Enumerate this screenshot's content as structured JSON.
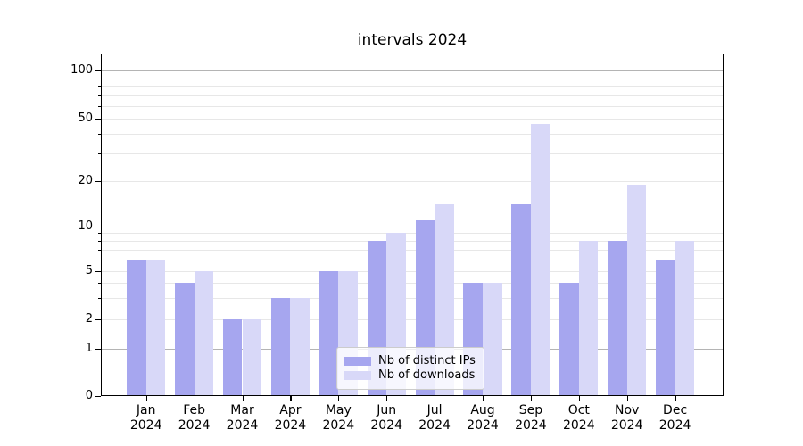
{
  "chart_data": {
    "type": "bar",
    "title": "intervals 2024",
    "categories": [
      "Jan",
      "Feb",
      "Mar",
      "Apr",
      "May",
      "Jun",
      "Jul",
      "Aug",
      "Sep",
      "Oct",
      "Nov",
      "Dec"
    ],
    "x_tick_second_line": "2024",
    "series": [
      {
        "name": "Nb of distinct IPs",
        "color": "#a6a6ef",
        "values": [
          6,
          4,
          2,
          3,
          5,
          8,
          11,
          4,
          14,
          4,
          8,
          6
        ]
      },
      {
        "name": "Nb of downloads",
        "color": "#d8d8f8",
        "values": [
          6,
          5,
          2,
          3,
          5,
          9,
          14,
          4,
          46,
          8,
          19,
          8
        ]
      }
    ],
    "y_axis": {
      "scale": "log-like, compressed toward 0, baseline 0 shown",
      "tick_labels": [
        "0",
        "1",
        "2",
        "5",
        "10",
        "20",
        "50",
        "100"
      ],
      "tick_values": [
        0,
        1,
        2,
        5,
        10,
        20,
        50,
        100
      ],
      "minor_tick_values": [
        3,
        4,
        6,
        7,
        8,
        9,
        30,
        40,
        60,
        70,
        80,
        90
      ],
      "grid_major_values": [
        1,
        10,
        100
      ],
      "grid_minor_values": [
        2,
        3,
        4,
        5,
        6,
        7,
        8,
        9,
        20,
        30,
        40,
        50,
        60,
        70,
        80,
        90
      ],
      "ylim": [
        0,
        128
      ]
    },
    "legend_position": "lower center",
    "grid": true
  },
  "colors": {
    "background": "#ffffff",
    "bar_dark": "#a6a6ef",
    "bar_light": "#d8d8f8",
    "grid_major": "#b4b4b4",
    "grid_minor": "#e7e7e7",
    "spine": "#000000",
    "text": "#000000",
    "legend_border": "#cccccc",
    "legend_background": "rgba(255,255,255,0.8)"
  }
}
